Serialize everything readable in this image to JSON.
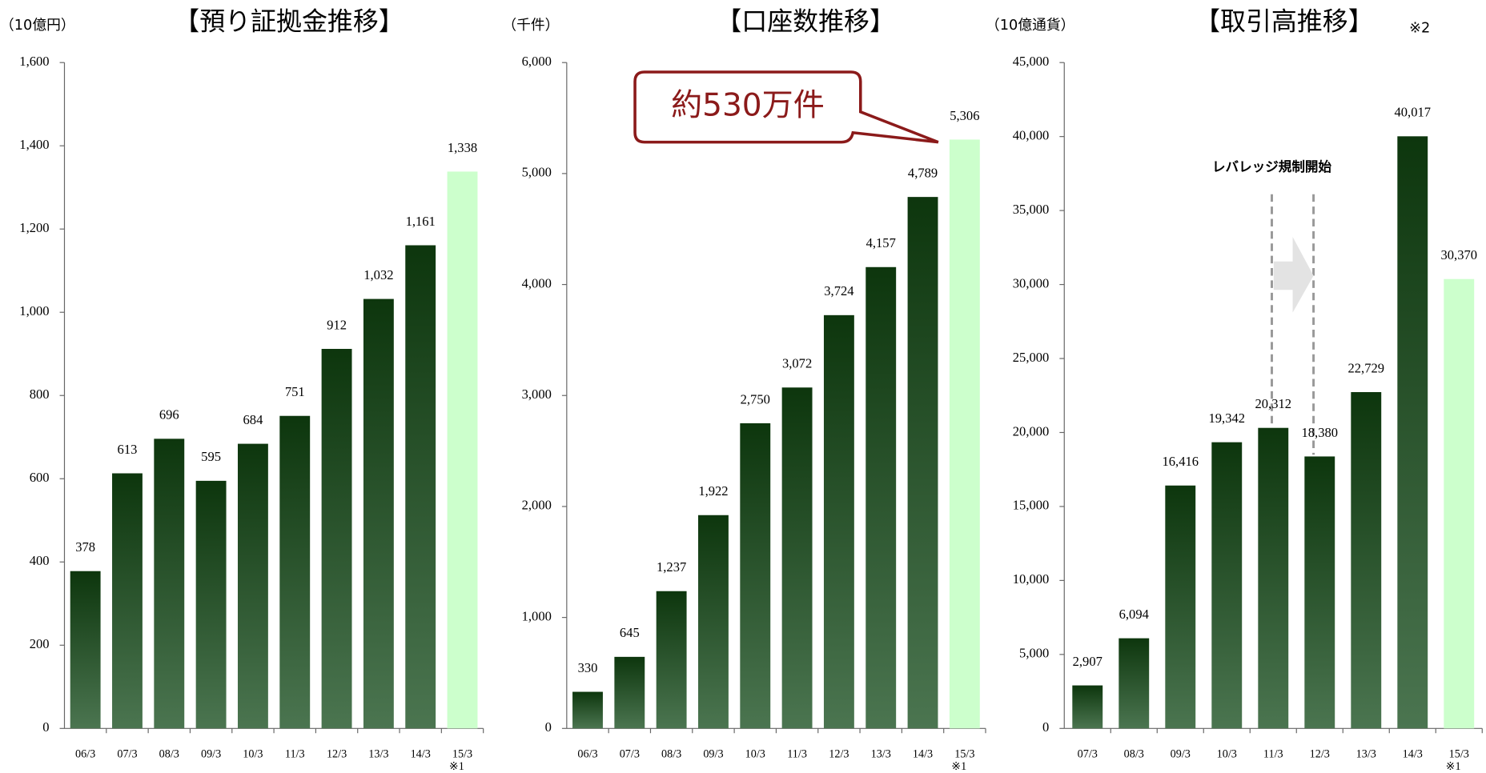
{
  "chart_data": [
    {
      "type": "bar",
      "title": "【預り証拠金推移】",
      "unit_label": "（10億円）",
      "categories": [
        "06/3",
        "07/3",
        "08/3",
        "09/3",
        "10/3",
        "11/3",
        "12/3",
        "13/3",
        "14/3",
        "15/3"
      ],
      "category_note": "※1",
      "values": [
        378,
        613,
        696,
        595,
        684,
        751,
        912,
        1032,
        1161,
        1338
      ],
      "value_labels": [
        "378",
        "613",
        "696",
        "595",
        "684",
        "751",
        "912",
        "1,032",
        "1,161",
        "1,338"
      ],
      "colors": [
        "#0d360d",
        "#0d360d",
        "#0d360d",
        "#0d360d",
        "#0d360d",
        "#0d360d",
        "#0d360d",
        "#0d360d",
        "#0d360d",
        "#ccffcc"
      ],
      "ylim": [
        0,
        1600
      ],
      "yticks": [
        0,
        200,
        400,
        600,
        800,
        {
          "value": 1000,
          "label": "1,000"
        },
        {
          "value": 1200,
          "label": "1,200"
        },
        {
          "value": 1400,
          "label": "1,400"
        },
        {
          "value": 1600,
          "label": "1,600"
        }
      ]
    },
    {
      "type": "bar",
      "title": "【口座数推移】",
      "unit_label": "（千件）",
      "categories": [
        "06/3",
        "07/3",
        "08/3",
        "09/3",
        "10/3",
        "11/3",
        "12/3",
        "13/3",
        "14/3",
        "15/3"
      ],
      "category_note": "※1",
      "values": [
        330,
        645,
        1237,
        1922,
        2750,
        3072,
        3724,
        4157,
        4789,
        5306
      ],
      "value_labels": [
        "330",
        "645",
        "1,237",
        "1,922",
        "2,750",
        "3,072",
        "3,724",
        "4,157",
        "4,789",
        "5,306"
      ],
      "colors": [
        "#0d360d",
        "#0d360d",
        "#0d360d",
        "#0d360d",
        "#0d360d",
        "#0d360d",
        "#0d360d",
        "#0d360d",
        "#0d360d",
        "#ccffcc"
      ],
      "ylim": [
        0,
        6000
      ],
      "yticks": [
        0,
        {
          "value": 1000,
          "label": "1,000"
        },
        {
          "value": 2000,
          "label": "2,000"
        },
        {
          "value": 3000,
          "label": "3,000"
        },
        {
          "value": 4000,
          "label": "4,000"
        },
        {
          "value": 5000,
          "label": "5,000"
        },
        {
          "value": 6000,
          "label": "6,000"
        }
      ],
      "annotation": "約530万件"
    },
    {
      "type": "bar",
      "title": "【取引高推移】",
      "title_note": "※2",
      "unit_label": "（10億通貨）",
      "categories": [
        "07/3",
        "08/3",
        "09/3",
        "10/3",
        "11/3",
        "12/3",
        "13/3",
        "14/3",
        "15/3"
      ],
      "category_note": "※1",
      "values": [
        2907,
        6094,
        16416,
        19342,
        20312,
        18380,
        22729,
        40017,
        30370
      ],
      "value_labels": [
        "2,907",
        "6,094",
        "16,416",
        "19,342",
        "20,312",
        "18,380",
        "22,729",
        "40,017",
        "30,370"
      ],
      "colors": [
        "#0d360d",
        "#0d360d",
        "#0d360d",
        "#0d360d",
        "#0d360d",
        "#0d360d",
        "#0d360d",
        "#0d360d",
        "#ccffcc"
      ],
      "ylim": [
        0,
        45000
      ],
      "yticks": [
        0,
        {
          "value": 5000,
          "label": "5,000"
        },
        {
          "value": 10000,
          "label": "10,000"
        },
        {
          "value": 15000,
          "label": "15,000"
        },
        {
          "value": 20000,
          "label": "20,000"
        },
        {
          "value": 25000,
          "label": "25,000"
        },
        {
          "value": 30000,
          "label": "30,000"
        },
        {
          "value": 35000,
          "label": "35,000"
        },
        {
          "value": 40000,
          "label": "40,000"
        },
        {
          "value": 45000,
          "label": "45,000"
        }
      ],
      "annotation": "レバレッジ規制開始"
    }
  ]
}
